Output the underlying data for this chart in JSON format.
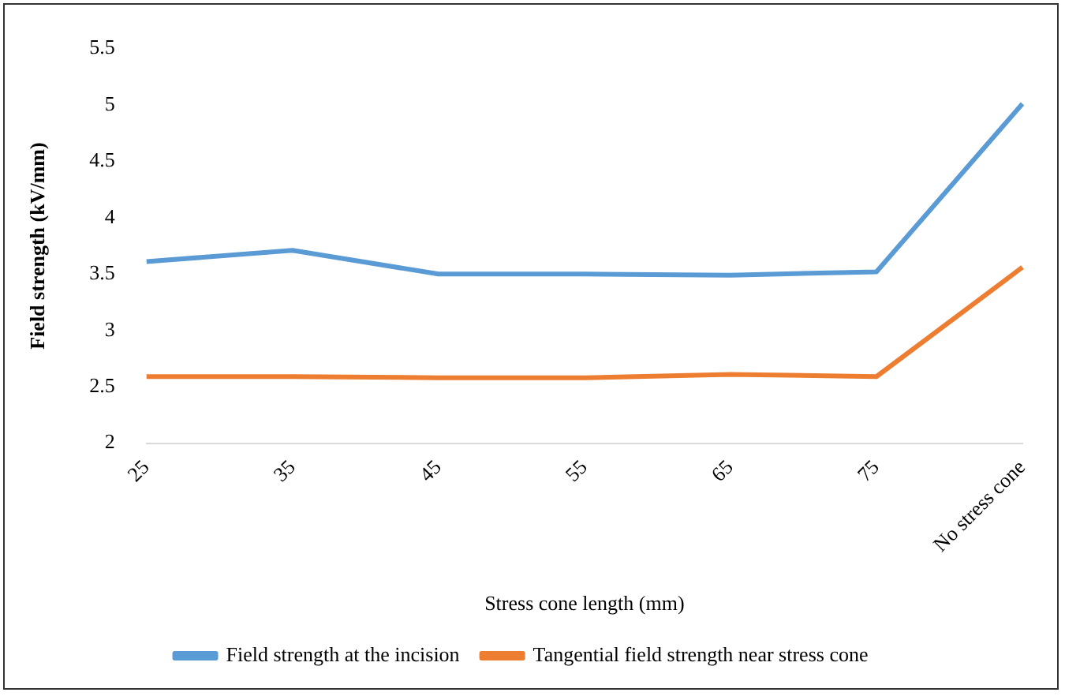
{
  "chart_data": {
    "type": "line",
    "xlabel": "Stress cone length (mm)",
    "ylabel": "Field strength (kV/mm)",
    "categories": [
      "25",
      "35",
      "45",
      "55",
      "65",
      "75",
      "No stress cone"
    ],
    "series": [
      {
        "name": "Field strength at the incision",
        "color": "#5b9bd5",
        "values": [
          3.61,
          3.71,
          3.5,
          3.5,
          3.49,
          3.52,
          5.01
        ]
      },
      {
        "name": "Tangential field strength near stress cone",
        "color": "#ed7d31",
        "values": [
          2.59,
          2.59,
          2.58,
          2.58,
          2.61,
          2.59,
          3.56
        ]
      }
    ],
    "ylim": [
      2,
      5.5
    ],
    "yticks": [
      2,
      2.5,
      3,
      3.5,
      4,
      4.5,
      5,
      5.5
    ],
    "grid": false,
    "legend": "bottom",
    "marker": "none",
    "line_style": "solid"
  }
}
